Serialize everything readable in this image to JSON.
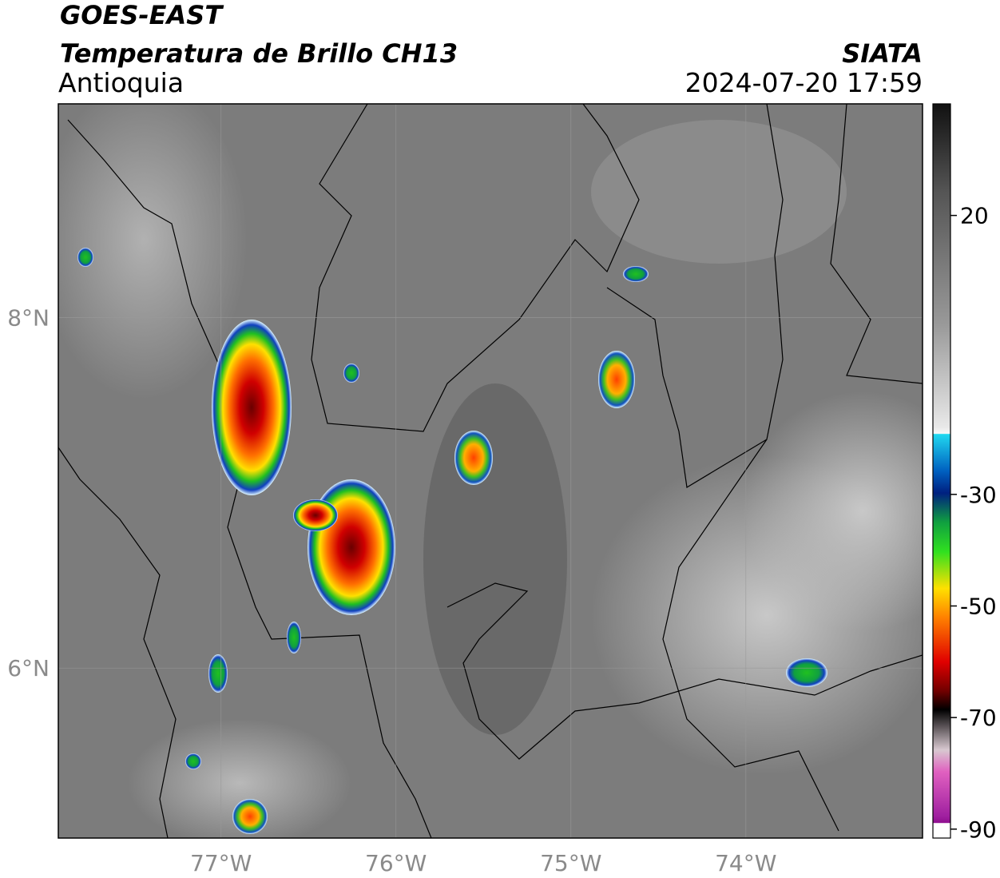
{
  "header": {
    "title": "GOES-EAST",
    "subtitle": "Temperatura de Brillo CH13",
    "region": "Antioquia",
    "source": "SIATA",
    "datetime": "2024-07-20 17:59"
  },
  "map": {
    "lonlim": [
      -77.93,
      -72.99
    ],
    "latlim": [
      5.03,
      9.22
    ],
    "lon_ticks": [
      {
        "value": -77,
        "label": "77°W"
      },
      {
        "value": -76,
        "label": "76°W"
      },
      {
        "value": -75,
        "label": "75°W"
      },
      {
        "value": -74,
        "label": "74°W"
      }
    ],
    "lat_ticks": [
      {
        "value": 8,
        "label": "8°N"
      },
      {
        "value": 6,
        "label": "6°N"
      }
    ]
  },
  "colorbar": {
    "lim": [
      -91.6,
      40
    ],
    "ticks": [
      20,
      -30,
      -50,
      -70,
      -90
    ]
  }
}
